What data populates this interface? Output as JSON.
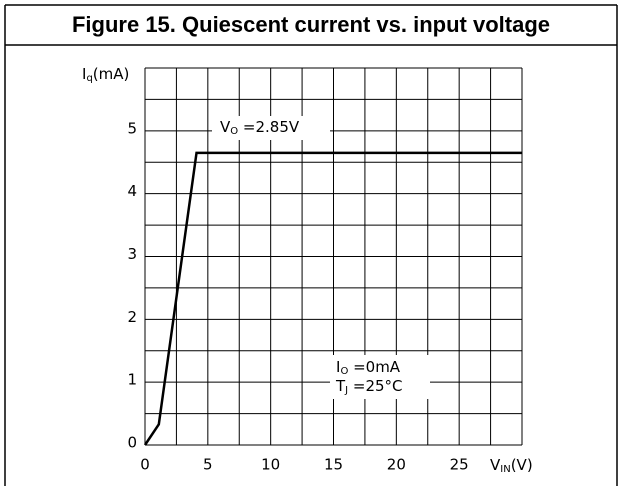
{
  "chart_data": {
    "type": "line",
    "title": "Figure 15. Quiescent current vs. input voltage",
    "y_label": {
      "main": "I",
      "sub": "q",
      "rest": "(mA)"
    },
    "x_label": {
      "main": "V",
      "sub": "IN",
      "rest": "(V)"
    },
    "annotations": [
      [
        {
          "main": "V",
          "sub": "O",
          "rest": " =2.85V"
        }
      ],
      [
        {
          "main": "I",
          "sub": "O",
          "rest": " =0mA"
        },
        {
          "main": "T",
          "sub": "J",
          "rest": " =25°C"
        }
      ]
    ],
    "x": [
      0,
      1.1,
      4.1,
      30
    ],
    "series": [
      {
        "color": "#000000",
        "values": [
          0,
          0.33,
          4.65,
          4.65
        ]
      }
    ],
    "xlim": [
      0,
      30
    ],
    "ylim": [
      0,
      6
    ],
    "xticks": [
      0,
      5,
      10,
      15,
      20,
      25
    ],
    "yticks": [
      0,
      1,
      2,
      3,
      4,
      5
    ],
    "xgrid": [
      0,
      2.5,
      5,
      7.5,
      10,
      12.5,
      15,
      17.5,
      20,
      22.5,
      25,
      27.5,
      30
    ],
    "ygrid": [
      0,
      0.5,
      1,
      1.5,
      2,
      2.5,
      3,
      3.5,
      4,
      4.5,
      5,
      5.5,
      6
    ],
    "grid": true
  }
}
